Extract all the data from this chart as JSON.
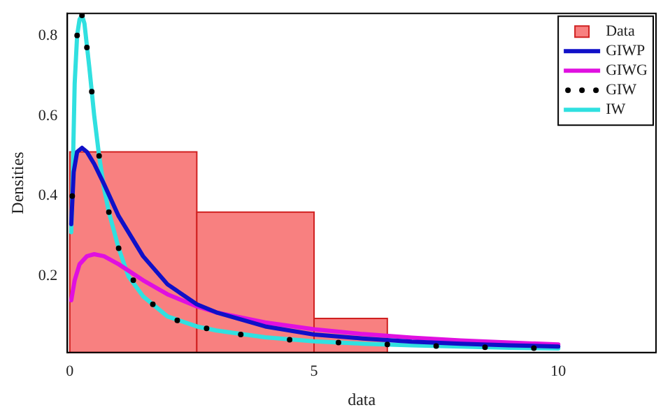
{
  "chart_data": {
    "type": "histogram",
    "xlabel": "data",
    "ylabel": "Densities",
    "xlim": [
      -0.05,
      12
    ],
    "ylim": [
      0.01,
      0.855
    ],
    "xticks": [
      0,
      5,
      10
    ],
    "yticks": [
      0.2,
      0.4,
      0.6,
      0.8
    ],
    "grid": false,
    "legend": "top right",
    "series": [
      {
        "name": "Data",
        "color": "#f88080",
        "bins": [
          0,
          2.6,
          5,
          6.5
        ],
        "values": [
          0.51,
          0.36,
          0.095
        ]
      },
      {
        "name": "GIWP",
        "type": "line",
        "color": "#1010c8",
        "marker": "none",
        "line_style": "solid",
        "x": [
          0.03,
          0.08,
          0.15,
          0.25,
          0.35,
          0.5,
          0.7,
          1,
          1.5,
          2,
          2.6,
          3,
          4,
          5,
          6,
          7,
          8,
          9,
          10
        ],
        "values": [
          0.33,
          0.46,
          0.51,
          0.52,
          0.51,
          0.48,
          0.43,
          0.35,
          0.25,
          0.18,
          0.13,
          0.11,
          0.075,
          0.055,
          0.045,
          0.037,
          0.032,
          0.028,
          0.025
        ]
      },
      {
        "name": "GIWG",
        "type": "line",
        "color": "#e010e0",
        "marker": "none",
        "line_style": "solid",
        "x": [
          0.03,
          0.1,
          0.2,
          0.35,
          0.5,
          0.7,
          1,
          1.5,
          2,
          2.6,
          3,
          4,
          5,
          6,
          7,
          8,
          9,
          10
        ],
        "values": [
          0.14,
          0.19,
          0.23,
          0.25,
          0.255,
          0.25,
          0.23,
          0.19,
          0.155,
          0.125,
          0.11,
          0.085,
          0.068,
          0.056,
          0.047,
          0.04,
          0.035,
          0.03
        ]
      },
      {
        "name": "GIW",
        "type": "scatter",
        "color": "#000000",
        "marker": "circle",
        "x": [
          0.05,
          0.15,
          0.25,
          0.35,
          0.45,
          0.6,
          0.8,
          1,
          1.3,
          1.7,
          2.2,
          2.8,
          3.5,
          4.5,
          5.5,
          6.5,
          7.5,
          8.5,
          9.5
        ],
        "values": [
          0.4,
          0.8,
          0.85,
          0.77,
          0.66,
          0.5,
          0.36,
          0.27,
          0.19,
          0.13,
          0.09,
          0.07,
          0.055,
          0.042,
          0.035,
          0.03,
          0.026,
          0.023,
          0.021
        ]
      },
      {
        "name": "IW",
        "type": "line",
        "color": "#30e0e0",
        "marker": "none",
        "line_style": "solid",
        "x": [
          0.03,
          0.06,
          0.1,
          0.15,
          0.2,
          0.25,
          0.3,
          0.4,
          0.5,
          0.6,
          0.7,
          0.8,
          1,
          1.2,
          1.5,
          2,
          2.6,
          3,
          4,
          5,
          6,
          7,
          8,
          9,
          10
        ],
        "values": [
          0.31,
          0.45,
          0.68,
          0.8,
          0.84,
          0.85,
          0.83,
          0.72,
          0.6,
          0.5,
          0.42,
          0.36,
          0.27,
          0.2,
          0.15,
          0.1,
          0.075,
          0.065,
          0.048,
          0.038,
          0.032,
          0.028,
          0.025,
          0.022,
          0.02
        ]
      }
    ]
  }
}
